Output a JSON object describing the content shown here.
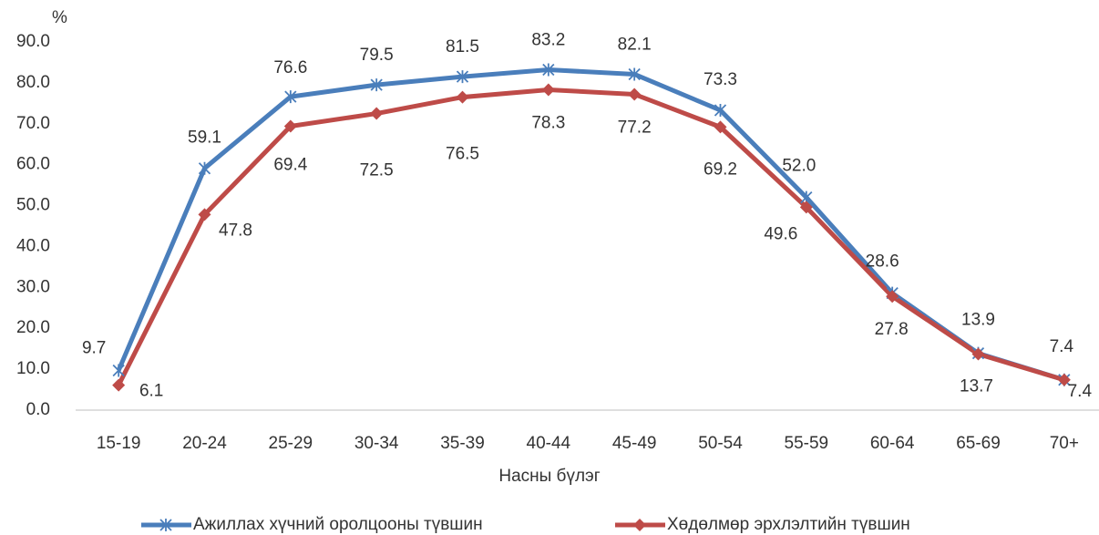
{
  "chart_data": {
    "type": "line",
    "y_unit": "%",
    "xlabel": "Насны бүлэг",
    "categories": [
      "15-19",
      "20-24",
      "25-29",
      "30-34",
      "35-39",
      "40-44",
      "45-49",
      "50-54",
      "55-59",
      "60-64",
      "65-69",
      "70+"
    ],
    "series": [
      {
        "name": "Ажиллах хүчний оролцооны түвшин",
        "color": "#4a7ebb",
        "marker": "star",
        "values": [
          9.7,
          59.1,
          76.6,
          79.5,
          81.5,
          83.2,
          82.1,
          73.3,
          52.0,
          28.6,
          13.9,
          7.4
        ],
        "value_labels": [
          "9.7",
          "59.1",
          "76.6",
          "79.5",
          "81.5",
          "83.2",
          "82.1",
          "73.3",
          "52.0",
          "28.6",
          "13.9",
          "7.4"
        ]
      },
      {
        "name": "Хөдөлмөр эрхлэлтийн түвшин",
        "color": "#be4b48",
        "marker": "diamond",
        "values": [
          6.1,
          47.8,
          69.4,
          72.5,
          76.5,
          78.3,
          77.2,
          69.2,
          49.6,
          27.8,
          13.7,
          7.4
        ],
        "value_labels": [
          "6.1",
          "47.8",
          "69.4",
          "72.5",
          "76.5",
          "78.3",
          "77.2",
          "69.2",
          "49.6",
          "27.8",
          "13.7",
          "7.4"
        ]
      }
    ],
    "ylim": [
      0,
      90
    ],
    "yticks": [
      {
        "value": 0,
        "label": "0.0"
      },
      {
        "value": 10,
        "label": "10.0"
      },
      {
        "value": 20,
        "label": "20.0"
      },
      {
        "value": 30,
        "label": "30.0"
      },
      {
        "value": 40,
        "label": "40.0"
      },
      {
        "value": 50,
        "label": "50.0"
      },
      {
        "value": 60,
        "label": "60.0"
      },
      {
        "value": 70,
        "label": "70.0"
      },
      {
        "value": 80,
        "label": "80.0"
      },
      {
        "value": 90,
        "label": "90.0"
      }
    ],
    "grid": false,
    "legend": "bottom"
  }
}
